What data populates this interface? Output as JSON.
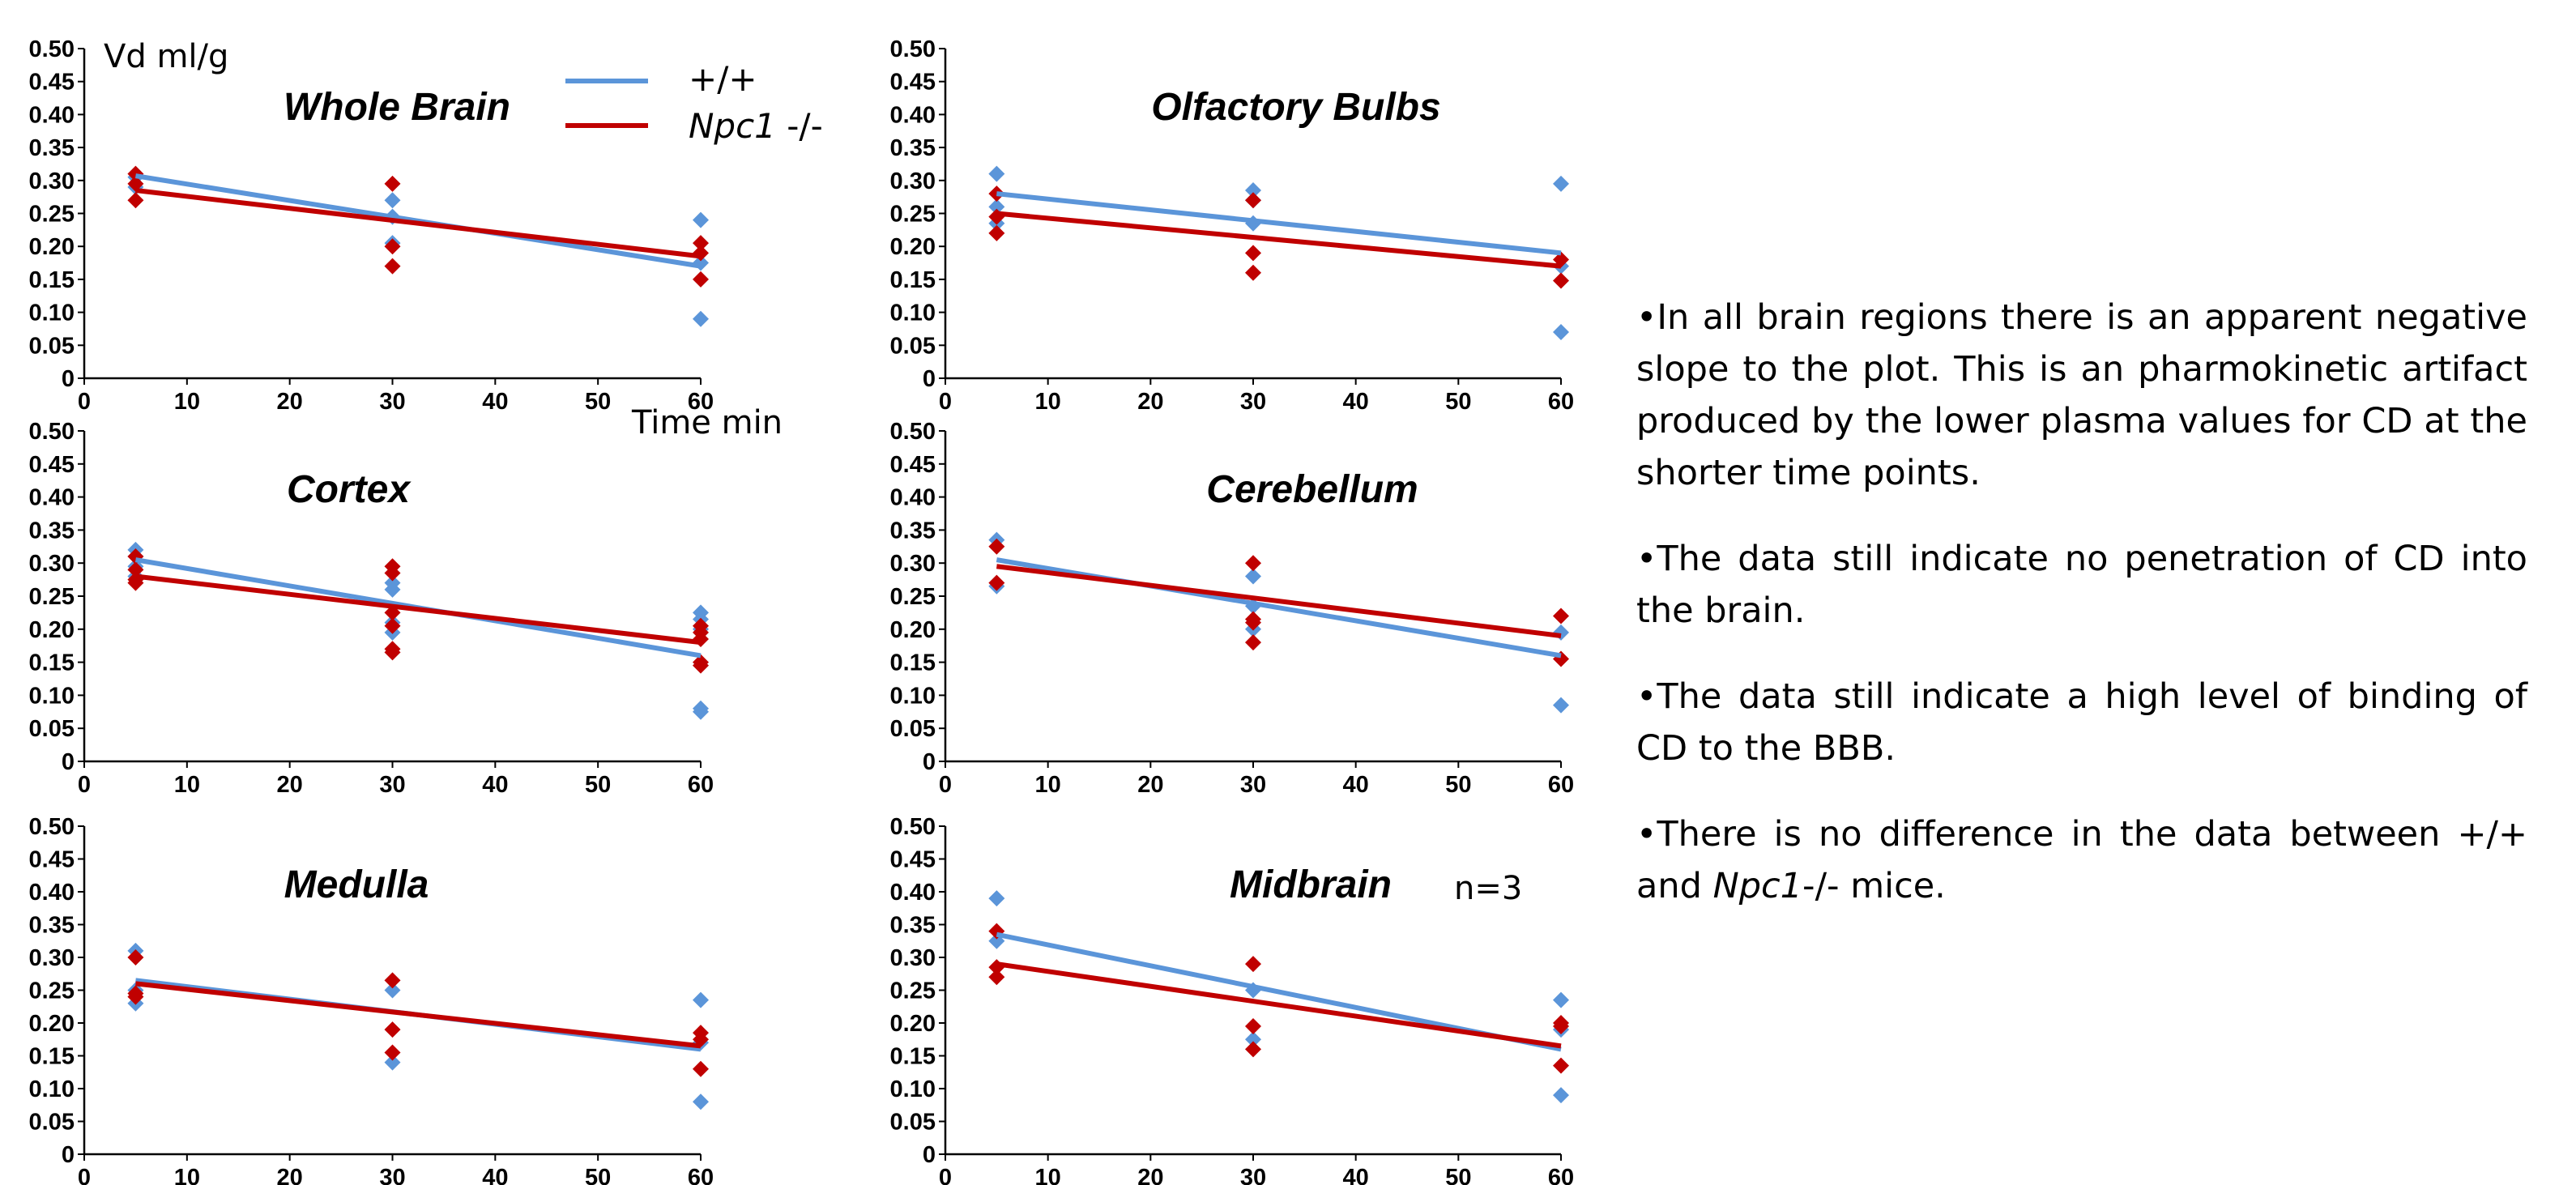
{
  "colors": {
    "wt": "#5b95d9",
    "npc": "#c00000"
  },
  "legend": {
    "wt_label": "+/+",
    "npc_italic": "Npc1",
    "npc_rest": " -/-"
  },
  "labels": {
    "y_unit": "Vd ml/g",
    "x_unit": "Time min",
    "n_note": "n=3"
  },
  "axes": {
    "y_ticks": [
      "0",
      "0.05",
      "0.10",
      "0.15",
      "0.20",
      "0.25",
      "0.30",
      "0.35",
      "0.40",
      "0.45",
      "0.50"
    ],
    "x_ticks": [
      "0",
      "10",
      "20",
      "30",
      "40",
      "50",
      "60"
    ]
  },
  "chart_data": [
    {
      "type": "scatter",
      "title": "Whole Brain",
      "xlim": [
        0,
        60
      ],
      "ylim": [
        0,
        0.5
      ],
      "series": [
        {
          "name": "+/+",
          "points": [
            [
              5,
              0.305
            ],
            [
              5,
              0.29
            ],
            [
              30,
              0.27
            ],
            [
              30,
              0.245
            ],
            [
              30,
              0.205
            ],
            [
              60,
              0.24
            ],
            [
              60,
              0.175
            ],
            [
              60,
              0.09
            ]
          ],
          "fit": [
            [
              5,
              0.307
            ],
            [
              60,
              0.17
            ]
          ]
        },
        {
          "name": "Npc1 -/-",
          "points": [
            [
              5,
              0.31
            ],
            [
              5,
              0.295
            ],
            [
              5,
              0.27
            ],
            [
              30,
              0.295
            ],
            [
              30,
              0.2
            ],
            [
              30,
              0.17
            ],
            [
              60,
              0.205
            ],
            [
              60,
              0.19
            ],
            [
              60,
              0.15
            ]
          ],
          "fit": [
            [
              5,
              0.285
            ],
            [
              60,
              0.185
            ]
          ]
        }
      ]
    },
    {
      "type": "scatter",
      "title": "Olfactory Bulbs",
      "xlim": [
        0,
        60
      ],
      "ylim": [
        0,
        0.5
      ],
      "series": [
        {
          "name": "+/+",
          "points": [
            [
              5,
              0.31
            ],
            [
              5,
              0.26
            ],
            [
              5,
              0.235
            ],
            [
              30,
              0.285
            ],
            [
              30,
              0.27
            ],
            [
              30,
              0.235
            ],
            [
              60,
              0.295
            ],
            [
              60,
              0.17
            ],
            [
              60,
              0.07
            ]
          ],
          "fit": [
            [
              5,
              0.28
            ],
            [
              60,
              0.19
            ]
          ]
        },
        {
          "name": "Npc1 -/-",
          "points": [
            [
              5,
              0.28
            ],
            [
              5,
              0.245
            ],
            [
              5,
              0.22
            ],
            [
              30,
              0.27
            ],
            [
              30,
              0.19
            ],
            [
              30,
              0.16
            ],
            [
              60,
              0.18
            ],
            [
              60,
              0.148
            ]
          ],
          "fit": [
            [
              5,
              0.25
            ],
            [
              60,
              0.17
            ]
          ]
        }
      ]
    },
    {
      "type": "scatter",
      "title": "Cortex",
      "xlim": [
        0,
        60
      ],
      "ylim": [
        0,
        0.5
      ],
      "series": [
        {
          "name": "+/+",
          "points": [
            [
              5,
              0.32
            ],
            [
              5,
              0.31
            ],
            [
              5,
              0.295
            ],
            [
              5,
              0.28
            ],
            [
              30,
              0.27
            ],
            [
              30,
              0.26
            ],
            [
              30,
              0.21
            ],
            [
              30,
              0.195
            ],
            [
              60,
              0.225
            ],
            [
              60,
              0.215
            ],
            [
              60,
              0.2
            ],
            [
              60,
              0.08
            ],
            [
              60,
              0.075
            ]
          ],
          "fit": [
            [
              5,
              0.305
            ],
            [
              60,
              0.16
            ]
          ]
        },
        {
          "name": "Npc1 -/-",
          "points": [
            [
              5,
              0.31
            ],
            [
              5,
              0.29
            ],
            [
              5,
              0.275
            ],
            [
              5,
              0.27
            ],
            [
              30,
              0.295
            ],
            [
              30,
              0.285
            ],
            [
              30,
              0.225
            ],
            [
              30,
              0.205
            ],
            [
              30,
              0.17
            ],
            [
              30,
              0.165
            ],
            [
              60,
              0.205
            ],
            [
              60,
              0.195
            ],
            [
              60,
              0.185
            ],
            [
              60,
              0.15
            ],
            [
              60,
              0.145
            ]
          ],
          "fit": [
            [
              5,
              0.28
            ],
            [
              60,
              0.18
            ]
          ]
        }
      ]
    },
    {
      "type": "scatter",
      "title": "Cerebellum",
      "xlim": [
        0,
        60
      ],
      "ylim": [
        0,
        0.5
      ],
      "series": [
        {
          "name": "+/+",
          "points": [
            [
              5,
              0.335
            ],
            [
              5,
              0.265
            ],
            [
              30,
              0.28
            ],
            [
              30,
              0.235
            ],
            [
              30,
              0.2
            ],
            [
              60,
              0.195
            ],
            [
              60,
              0.085
            ]
          ],
          "fit": [
            [
              5,
              0.305
            ],
            [
              60,
              0.16
            ]
          ]
        },
        {
          "name": "Npc1 -/-",
          "points": [
            [
              5,
              0.325
            ],
            [
              5,
              0.27
            ],
            [
              30,
              0.3
            ],
            [
              30,
              0.215
            ],
            [
              30,
              0.21
            ],
            [
              30,
              0.18
            ],
            [
              60,
              0.22
            ],
            [
              60,
              0.155
            ]
          ],
          "fit": [
            [
              5,
              0.295
            ],
            [
              60,
              0.19
            ]
          ]
        }
      ]
    },
    {
      "type": "scatter",
      "title": "Medulla",
      "xlim": [
        0,
        60
      ],
      "ylim": [
        0,
        0.5
      ],
      "series": [
        {
          "name": "+/+",
          "points": [
            [
              5,
              0.31
            ],
            [
              5,
              0.25
            ],
            [
              5,
              0.23
            ],
            [
              30,
              0.25
            ],
            [
              30,
              0.14
            ],
            [
              60,
              0.235
            ],
            [
              60,
              0.17
            ],
            [
              60,
              0.08
            ]
          ],
          "fit": [
            [
              5,
              0.265
            ],
            [
              60,
              0.16
            ]
          ]
        },
        {
          "name": "Npc1 -/-",
          "points": [
            [
              5,
              0.3
            ],
            [
              5,
              0.245
            ],
            [
              5,
              0.24
            ],
            [
              30,
              0.265
            ],
            [
              30,
              0.19
            ],
            [
              30,
              0.155
            ],
            [
              60,
              0.185
            ],
            [
              60,
              0.175
            ],
            [
              60,
              0.13
            ]
          ],
          "fit": [
            [
              5,
              0.26
            ],
            [
              60,
              0.165
            ]
          ]
        }
      ]
    },
    {
      "type": "scatter",
      "title": "Midbrain",
      "xlim": [
        0,
        60
      ],
      "ylim": [
        0,
        0.5
      ],
      "series": [
        {
          "name": "+/+",
          "points": [
            [
              5,
              0.39
            ],
            [
              5,
              0.325
            ],
            [
              30,
              0.25
            ],
            [
              30,
              0.175
            ],
            [
              60,
              0.235
            ],
            [
              60,
              0.19
            ],
            [
              60,
              0.09
            ]
          ],
          "fit": [
            [
              5,
              0.335
            ],
            [
              60,
              0.16
            ]
          ]
        },
        {
          "name": "Npc1 -/-",
          "points": [
            [
              5,
              0.34
            ],
            [
              5,
              0.285
            ],
            [
              5,
              0.27
            ],
            [
              30,
              0.29
            ],
            [
              30,
              0.195
            ],
            [
              30,
              0.16
            ],
            [
              60,
              0.2
            ],
            [
              60,
              0.195
            ],
            [
              60,
              0.135
            ]
          ],
          "fit": [
            [
              5,
              0.29
            ],
            [
              60,
              0.165
            ]
          ]
        }
      ]
    }
  ],
  "notes": [
    {
      "text": "•In all brain regions there is an apparent negative slope to the plot. This is an pharmokinetic artifact produced by the lower plasma values for CD at the shorter time points."
    },
    {
      "text": "•The data still indicate no penetration of CD into the brain."
    },
    {
      "text": "•The data still indicate a high level of binding of CD to the BBB."
    },
    {
      "parts": [
        {
          "t": "•There is no difference in the data between +/+ and "
        },
        {
          "t": "Npc1",
          "italic": true
        },
        {
          "t": "-/- mice."
        }
      ]
    }
  ]
}
